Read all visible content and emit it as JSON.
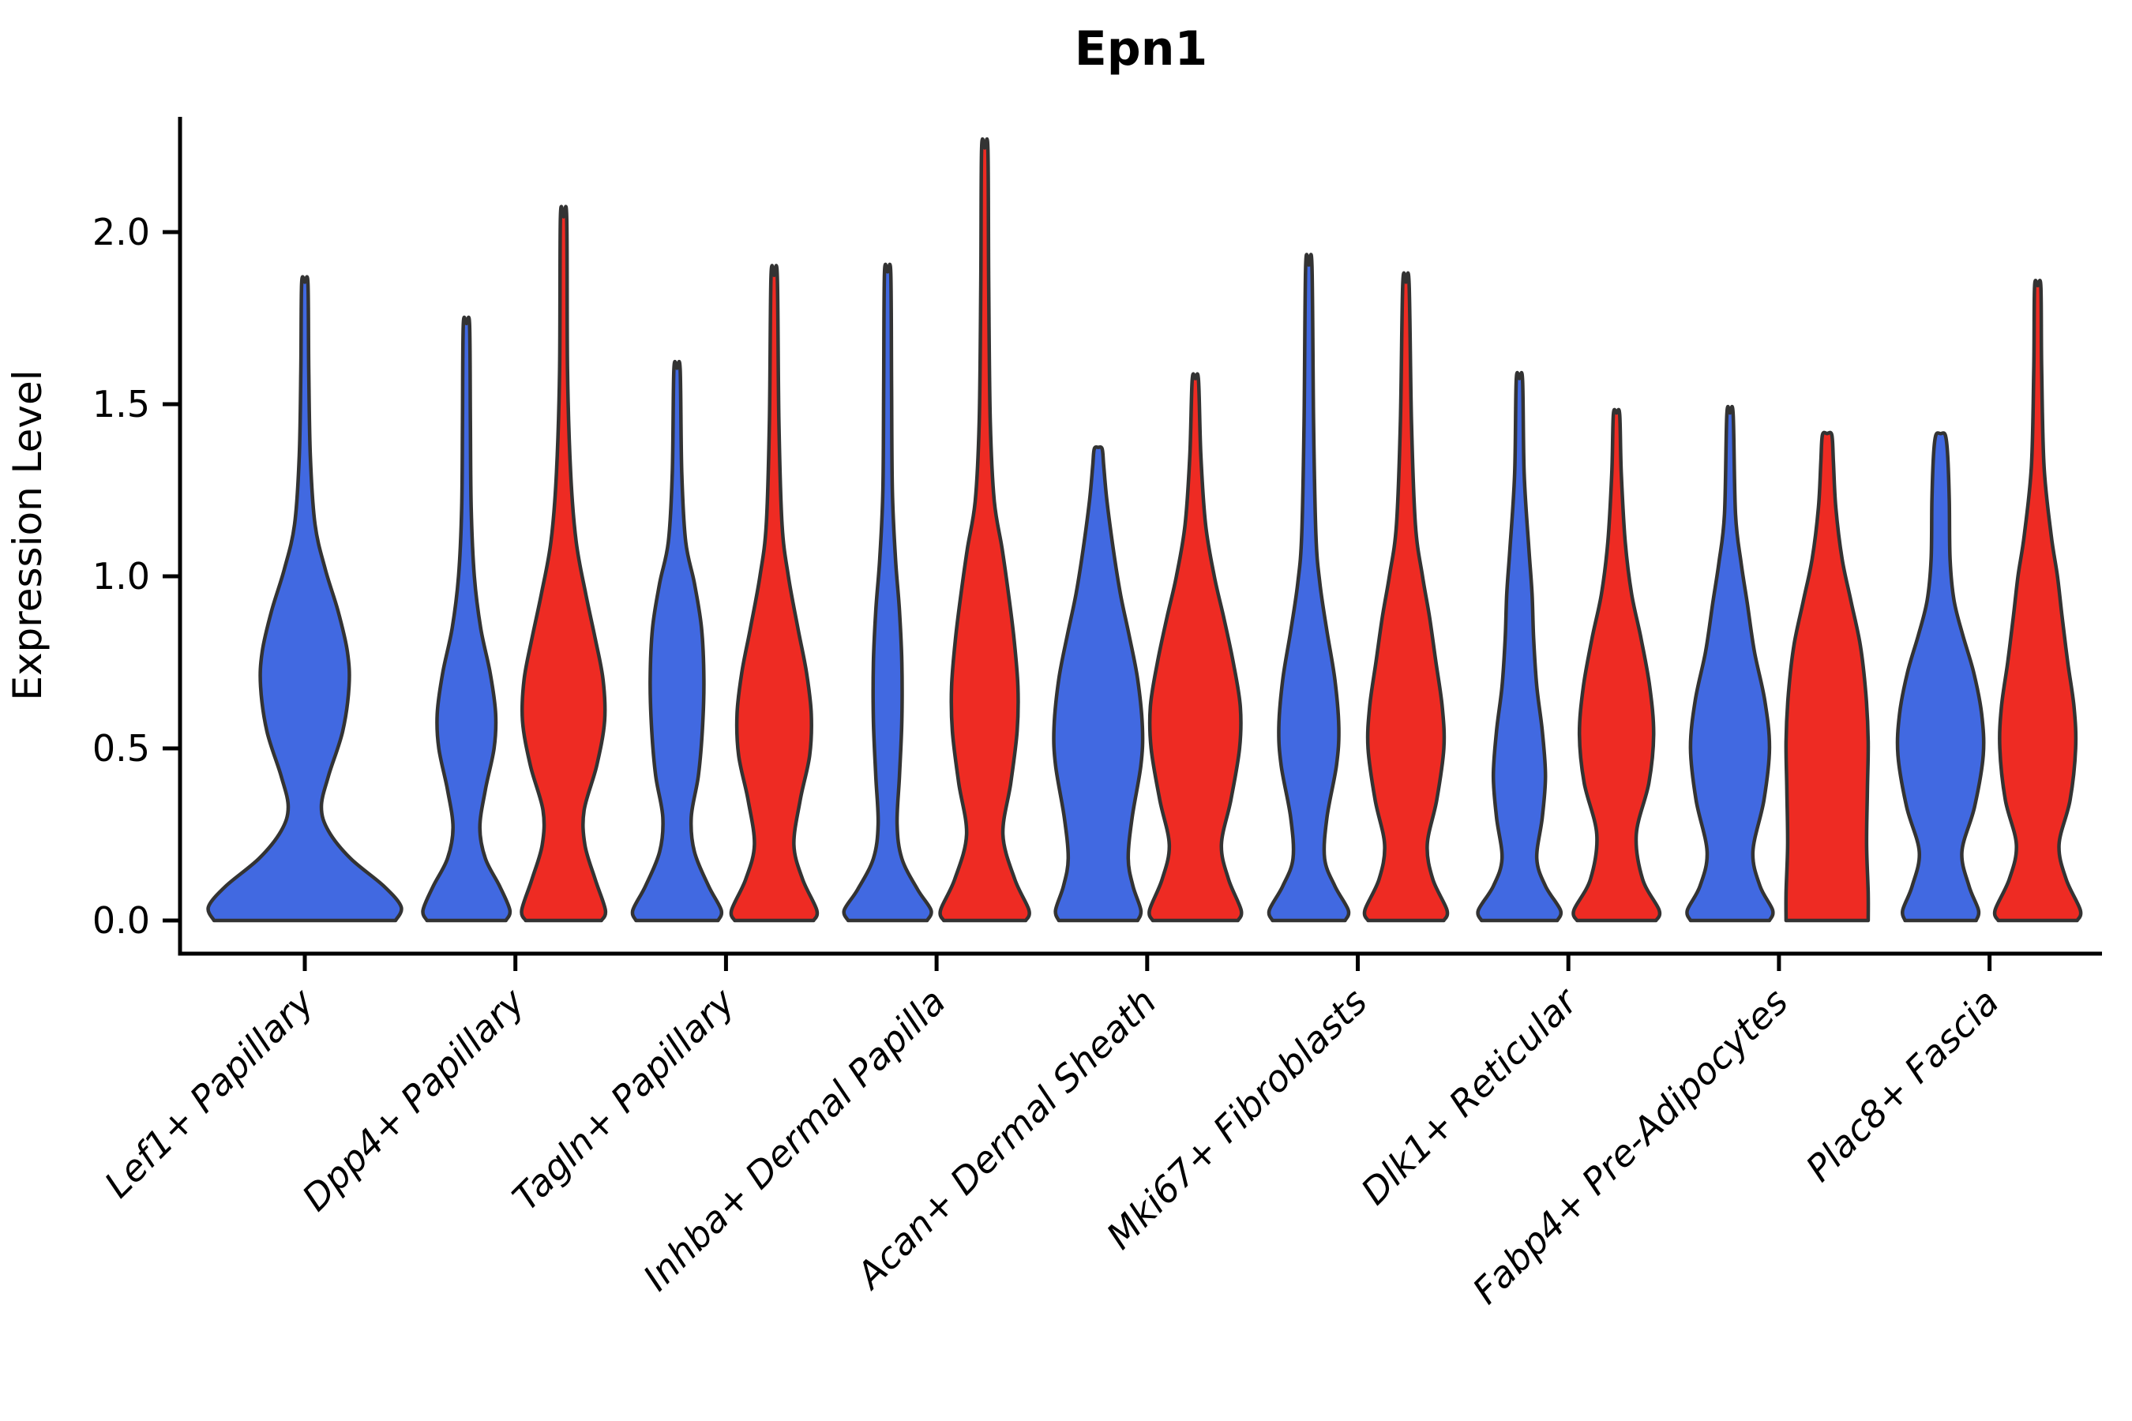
{
  "title": "Epn1",
  "y_axis": {
    "label": "Expression Level",
    "tick_labels": [
      "0.0",
      "0.5",
      "1.0",
      "1.5",
      "2.0"
    ]
  },
  "categories": [
    "Lef1+ Papillary",
    "Dpp4+ Papillary",
    "Tagln+ Papillary",
    "Inhba+ Dermal Papilla",
    "Acan+ Dermal Sheath",
    "Mki67+ Fibroblasts",
    "Dlk1+ Reticular",
    "Fabp4+ Pre-Adipocytes",
    "Plac8+ Fascia"
  ],
  "colors": {
    "blue": "#4169E1",
    "red": "#EE2B23",
    "outline": "#333333",
    "axis": "#000000"
  },
  "chart_data": {
    "type": "violin",
    "title": "Epn1",
    "ylabel": "Expression Level",
    "ylim": [
      -0.1,
      2.33
    ],
    "yticks": [
      0.0,
      0.5,
      1.0,
      1.5,
      2.0
    ],
    "grid": false,
    "legend": "none",
    "categories": [
      "Lef1+ Papillary",
      "Dpp4+ Papillary",
      "Tagln+ Papillary",
      "Inhba+ Dermal Papilla",
      "Acan+ Dermal Sheath",
      "Mki67+ Fibroblasts",
      "Dlk1+ Reticular",
      "Fabp4+ Pre-Adipocytes",
      "Plac8+ Fascia"
    ],
    "series": [
      {
        "name": "blue",
        "color": "#4169E1",
        "max_expression": [
          1.85,
          1.73,
          1.6,
          1.88,
          1.37,
          1.9,
          1.57,
          1.47,
          1.41
        ]
      },
      {
        "name": "red",
        "color": "#EE2B23",
        "max_expression": [
          null,
          2.04,
          1.87,
          2.24,
          1.57,
          1.85,
          1.47,
          1.41,
          1.84
        ]
      }
    ],
    "violins": [
      {
        "category": 0,
        "group": "blue",
        "position": "center",
        "profile": [
          [
            0.0,
            115
          ],
          [
            0.04,
            122
          ],
          [
            0.1,
            100
          ],
          [
            0.18,
            58
          ],
          [
            0.26,
            30
          ],
          [
            0.33,
            21
          ],
          [
            0.42,
            30
          ],
          [
            0.55,
            48
          ],
          [
            0.68,
            56
          ],
          [
            0.78,
            54
          ],
          [
            0.9,
            42
          ],
          [
            1.02,
            26
          ],
          [
            1.15,
            13
          ],
          [
            1.35,
            7
          ],
          [
            1.6,
            5
          ],
          [
            1.85,
            4
          ]
        ]
      },
      {
        "category": 1,
        "group": "blue",
        "position": "left",
        "profile": [
          [
            0.0,
            50
          ],
          [
            0.03,
            55
          ],
          [
            0.1,
            42
          ],
          [
            0.18,
            24
          ],
          [
            0.27,
            17
          ],
          [
            0.38,
            24
          ],
          [
            0.5,
            35
          ],
          [
            0.6,
            37
          ],
          [
            0.72,
            30
          ],
          [
            0.85,
            18
          ],
          [
            1.0,
            10
          ],
          [
            1.2,
            6
          ],
          [
            1.45,
            5
          ],
          [
            1.73,
            4
          ]
        ]
      },
      {
        "category": 1,
        "group": "red",
        "position": "right",
        "profile": [
          [
            0.0,
            48
          ],
          [
            0.03,
            53
          ],
          [
            0.12,
            40
          ],
          [
            0.22,
            27
          ],
          [
            0.32,
            26
          ],
          [
            0.45,
            42
          ],
          [
            0.58,
            52
          ],
          [
            0.7,
            50
          ],
          [
            0.82,
            40
          ],
          [
            0.95,
            28
          ],
          [
            1.1,
            16
          ],
          [
            1.3,
            9
          ],
          [
            1.6,
            5
          ],
          [
            2.04,
            4
          ]
        ]
      },
      {
        "category": 2,
        "group": "blue",
        "position": "left",
        "profile": [
          [
            0.0,
            52
          ],
          [
            0.03,
            56
          ],
          [
            0.1,
            40
          ],
          [
            0.2,
            22
          ],
          [
            0.3,
            18
          ],
          [
            0.42,
            27
          ],
          [
            0.55,
            32
          ],
          [
            0.7,
            34
          ],
          [
            0.85,
            31
          ],
          [
            0.98,
            22
          ],
          [
            1.1,
            11
          ],
          [
            1.3,
            6
          ],
          [
            1.6,
            4
          ]
        ]
      },
      {
        "category": 2,
        "group": "red",
        "position": "right",
        "profile": [
          [
            0.0,
            50
          ],
          [
            0.03,
            54
          ],
          [
            0.12,
            36
          ],
          [
            0.22,
            25
          ],
          [
            0.35,
            33
          ],
          [
            0.48,
            45
          ],
          [
            0.6,
            47
          ],
          [
            0.72,
            41
          ],
          [
            0.85,
            30
          ],
          [
            1.0,
            18
          ],
          [
            1.15,
            10
          ],
          [
            1.45,
            6
          ],
          [
            1.87,
            4
          ]
        ]
      },
      {
        "category": 3,
        "group": "blue",
        "position": "left",
        "profile": [
          [
            0.0,
            50
          ],
          [
            0.03,
            55
          ],
          [
            0.09,
            38
          ],
          [
            0.18,
            18
          ],
          [
            0.28,
            12
          ],
          [
            0.42,
            15
          ],
          [
            0.58,
            18
          ],
          [
            0.75,
            18
          ],
          [
            0.9,
            15
          ],
          [
            1.05,
            10
          ],
          [
            1.25,
            6
          ],
          [
            1.55,
            5
          ],
          [
            1.88,
            4
          ]
        ]
      },
      {
        "category": 3,
        "group": "red",
        "position": "right",
        "profile": [
          [
            0.0,
            52
          ],
          [
            0.03,
            56
          ],
          [
            0.12,
            38
          ],
          [
            0.25,
            23
          ],
          [
            0.4,
            33
          ],
          [
            0.55,
            41
          ],
          [
            0.68,
            42
          ],
          [
            0.82,
            37
          ],
          [
            0.95,
            30
          ],
          [
            1.08,
            22
          ],
          [
            1.22,
            12
          ],
          [
            1.45,
            7
          ],
          [
            1.85,
            5
          ],
          [
            2.24,
            4
          ]
        ]
      },
      {
        "category": 4,
        "group": "blue",
        "position": "left",
        "profile": [
          [
            0.0,
            50
          ],
          [
            0.03,
            54
          ],
          [
            0.1,
            44
          ],
          [
            0.18,
            38
          ],
          [
            0.3,
            43
          ],
          [
            0.45,
            54
          ],
          [
            0.56,
            56
          ],
          [
            0.7,
            50
          ],
          [
            0.83,
            39
          ],
          [
            0.95,
            28
          ],
          [
            1.08,
            19
          ],
          [
            1.22,
            11
          ],
          [
            1.32,
            7
          ],
          [
            1.37,
            5
          ]
        ]
      },
      {
        "category": 4,
        "group": "red",
        "position": "right",
        "profile": [
          [
            0.0,
            54
          ],
          [
            0.03,
            58
          ],
          [
            0.12,
            42
          ],
          [
            0.22,
            33
          ],
          [
            0.35,
            45
          ],
          [
            0.5,
            56
          ],
          [
            0.62,
            57
          ],
          [
            0.75,
            48
          ],
          [
            0.88,
            36
          ],
          [
            1.0,
            24
          ],
          [
            1.15,
            13
          ],
          [
            1.35,
            7
          ],
          [
            1.57,
            4
          ]
        ]
      },
      {
        "category": 5,
        "group": "blue",
        "position": "left",
        "profile": [
          [
            0.0,
            46
          ],
          [
            0.03,
            50
          ],
          [
            0.1,
            33
          ],
          [
            0.18,
            20
          ],
          [
            0.3,
            23
          ],
          [
            0.45,
            35
          ],
          [
            0.56,
            38
          ],
          [
            0.7,
            33
          ],
          [
            0.84,
            23
          ],
          [
            0.98,
            14
          ],
          [
            1.12,
            9
          ],
          [
            1.45,
            6
          ],
          [
            1.9,
            4
          ]
        ]
      },
      {
        "category": 5,
        "group": "red",
        "position": "right",
        "profile": [
          [
            0.0,
            48
          ],
          [
            0.03,
            52
          ],
          [
            0.12,
            34
          ],
          [
            0.22,
            27
          ],
          [
            0.35,
            39
          ],
          [
            0.5,
            48
          ],
          [
            0.62,
            46
          ],
          [
            0.75,
            38
          ],
          [
            0.88,
            30
          ],
          [
            1.0,
            21
          ],
          [
            1.15,
            12
          ],
          [
            1.45,
            7
          ],
          [
            1.85,
            4
          ]
        ]
      },
      {
        "category": 6,
        "group": "blue",
        "position": "left",
        "profile": [
          [
            0.0,
            48
          ],
          [
            0.03,
            52
          ],
          [
            0.1,
            33
          ],
          [
            0.18,
            22
          ],
          [
            0.3,
            29
          ],
          [
            0.42,
            33
          ],
          [
            0.55,
            29
          ],
          [
            0.68,
            22
          ],
          [
            0.82,
            18
          ],
          [
            0.95,
            16
          ],
          [
            1.08,
            12
          ],
          [
            1.3,
            6
          ],
          [
            1.57,
            4
          ]
        ]
      },
      {
        "category": 6,
        "group": "red",
        "position": "right",
        "profile": [
          [
            0.0,
            50
          ],
          [
            0.03,
            54
          ],
          [
            0.12,
            33
          ],
          [
            0.25,
            25
          ],
          [
            0.4,
            41
          ],
          [
            0.54,
            47
          ],
          [
            0.68,
            42
          ],
          [
            0.82,
            31
          ],
          [
            0.95,
            19
          ],
          [
            1.1,
            11
          ],
          [
            1.3,
            6
          ],
          [
            1.47,
            4
          ]
        ]
      },
      {
        "category": 7,
        "group": "blue",
        "position": "left",
        "profile": [
          [
            0.0,
            50
          ],
          [
            0.03,
            54
          ],
          [
            0.1,
            38
          ],
          [
            0.2,
            29
          ],
          [
            0.35,
            43
          ],
          [
            0.5,
            50
          ],
          [
            0.64,
            44
          ],
          [
            0.78,
            31
          ],
          [
            0.92,
            22
          ],
          [
            1.04,
            14
          ],
          [
            1.18,
            7
          ],
          [
            1.47,
            4
          ]
        ]
      },
      {
        "category": 7,
        "group": "red",
        "position": "right",
        "profile": [
          [
            0.0,
            52
          ],
          [
            0.08,
            52
          ],
          [
            0.22,
            50
          ],
          [
            0.38,
            51
          ],
          [
            0.52,
            52
          ],
          [
            0.66,
            49
          ],
          [
            0.8,
            42
          ],
          [
            0.93,
            30
          ],
          [
            1.05,
            19
          ],
          [
            1.2,
            11
          ],
          [
            1.33,
            8
          ],
          [
            1.41,
            6
          ]
        ]
      },
      {
        "category": 8,
        "group": "blue",
        "position": "left",
        "profile": [
          [
            0.0,
            45
          ],
          [
            0.03,
            48
          ],
          [
            0.1,
            36
          ],
          [
            0.2,
            27
          ],
          [
            0.33,
            43
          ],
          [
            0.48,
            54
          ],
          [
            0.6,
            52
          ],
          [
            0.72,
            42
          ],
          [
            0.83,
            28
          ],
          [
            0.93,
            17
          ],
          [
            1.05,
            12
          ],
          [
            1.22,
            11
          ],
          [
            1.35,
            9
          ],
          [
            1.41,
            6
          ]
        ]
      },
      {
        "category": 8,
        "group": "red",
        "position": "right",
        "profile": [
          [
            0.0,
            50
          ],
          [
            0.03,
            54
          ],
          [
            0.12,
            36
          ],
          [
            0.22,
            27
          ],
          [
            0.35,
            41
          ],
          [
            0.5,
            48
          ],
          [
            0.62,
            46
          ],
          [
            0.75,
            38
          ],
          [
            0.88,
            31
          ],
          [
            1.0,
            25
          ],
          [
            1.12,
            17
          ],
          [
            1.32,
            8
          ],
          [
            1.6,
            5
          ],
          [
            1.84,
            4
          ]
        ]
      }
    ]
  }
}
